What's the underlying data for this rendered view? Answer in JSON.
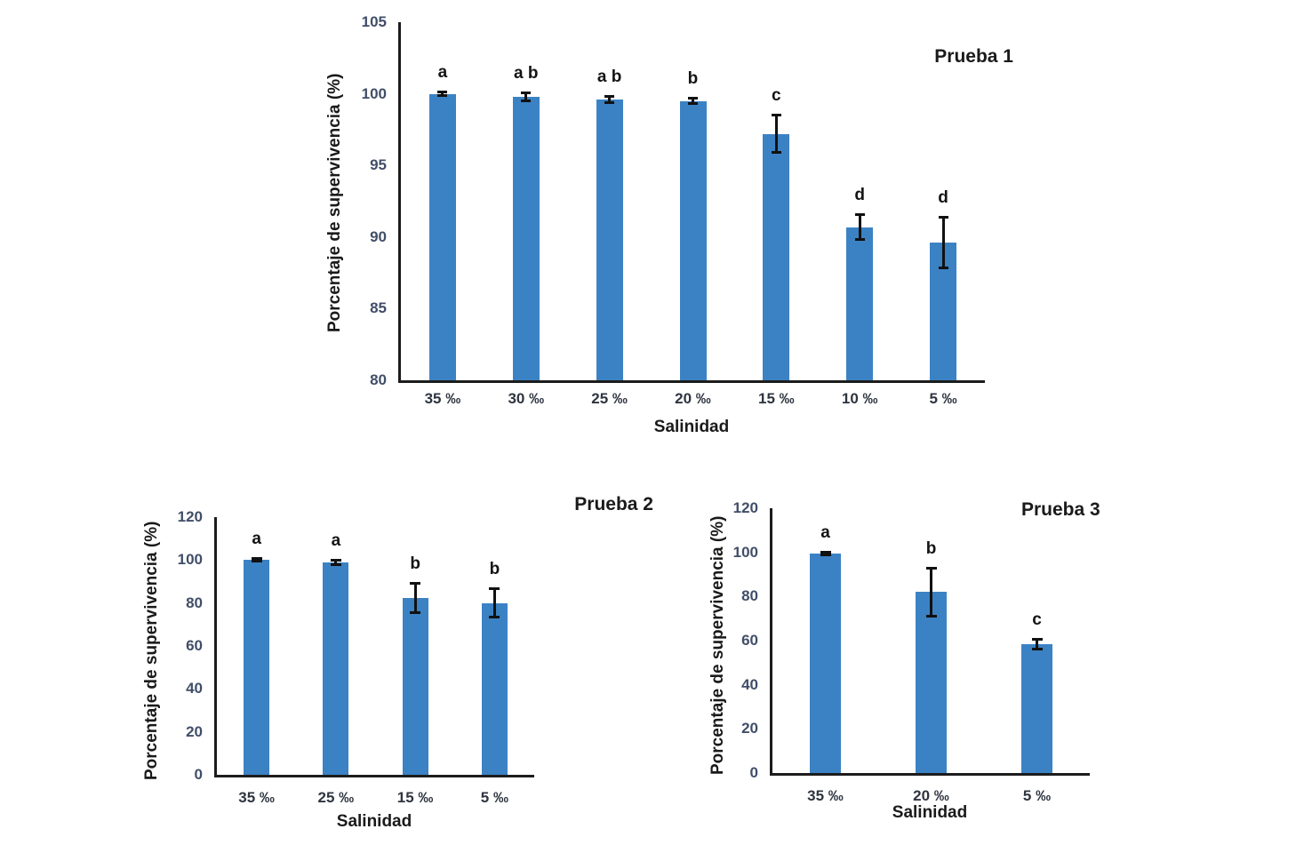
{
  "figure": {
    "background": "#ffffff",
    "bar_color": "#3B82C4",
    "error_bar_color": "#111111",
    "axis_color": "#1c1c1c",
    "y_tick_color": "#414e68",
    "x_tick_color": "#2e3540"
  },
  "chart_data": [
    {
      "type": "bar",
      "title": "Prueba 1",
      "ylabel": "Porcentaje de supervivencia (%)",
      "xlabel": "Salinidad",
      "ylim": [
        80,
        105
      ],
      "ystep": 5,
      "grid": false,
      "legend_position": "none",
      "categories": [
        "35 ‰",
        "30 ‰",
        "25 ‰",
        "20 ‰",
        "15 ‰",
        "10 ‰",
        "5 ‰"
      ],
      "values": [
        100,
        99.8,
        99.6,
        99.5,
        97.2,
        90.7,
        89.6
      ],
      "errors": [
        0.15,
        0.3,
        0.25,
        0.2,
        1.35,
        0.9,
        1.8
      ],
      "sig_letters": [
        "a",
        "a b",
        "a b",
        "b",
        "c",
        "d",
        "d"
      ]
    },
    {
      "type": "bar",
      "title": "Prueba 2",
      "ylabel": "Porcentaje de supervivencia (%)",
      "xlabel": "Salinidad",
      "ylim": [
        0,
        120
      ],
      "ystep": 20,
      "grid": false,
      "legend_position": "none",
      "categories": [
        "35 ‰",
        "25 ‰",
        "15 ‰",
        "5 ‰"
      ],
      "values": [
        100,
        99,
        82.5,
        80
      ],
      "errors": [
        0.8,
        1.2,
        7,
        6.8
      ],
      "sig_letters": [
        "a",
        "a",
        "b",
        "b"
      ]
    },
    {
      "type": "bar",
      "title": "Prueba 3",
      "ylabel": "Porcentaje de supervivencia (%)",
      "xlabel": "Salinidad",
      "ylim": [
        0,
        120
      ],
      "ystep": 20,
      "grid": false,
      "legend_position": "none",
      "categories": [
        "35 ‰",
        "20 ‰",
        "5 ‰"
      ],
      "values": [
        99.5,
        82,
        58.5
      ],
      "errors": [
        0.8,
        11,
        2.5
      ],
      "sig_letters": [
        "a",
        "b",
        "c"
      ]
    }
  ]
}
